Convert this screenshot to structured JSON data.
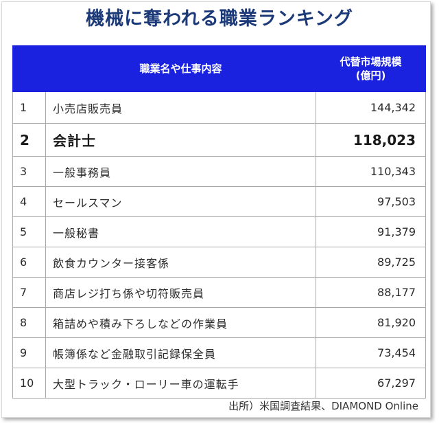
{
  "title": "機械に奪われる職業ランキング",
  "table": {
    "headers": {
      "rank": "",
      "job": "職業名や仕事内容",
      "market_line1": "代替市場規模",
      "market_line2": "(億円)"
    },
    "rows": [
      {
        "rank": "1",
        "job": "小売店販売員",
        "value": "144,342"
      },
      {
        "rank": "2",
        "job": "会計士",
        "value": "118,023"
      },
      {
        "rank": "3",
        "job": "一般事務員",
        "value": "110,343"
      },
      {
        "rank": "4",
        "job": "セールスマン",
        "value": "97,503"
      },
      {
        "rank": "5",
        "job": "一般秘書",
        "value": "91,379"
      },
      {
        "rank": "6",
        "job": "飲食カウンター接客係",
        "value": "89,725"
      },
      {
        "rank": "7",
        "job": "商店レジ打ち係や切符販売員",
        "value": "88,177"
      },
      {
        "rank": "8",
        "job": "箱詰めや積み下ろしなどの作業員",
        "value": "81,920"
      },
      {
        "rank": "9",
        "job": "帳簿係など金融取引記録保全員",
        "value": "73,454"
      },
      {
        "rank": "10",
        "job": "大型トラック・ローリー車の運転手",
        "value": "67,297"
      }
    ]
  },
  "source": "出所）米国調査結果、DIAMOND Online",
  "colors": {
    "title": "#1d3a78",
    "header_bg": "#1a22e0",
    "header_text": "#ffffff",
    "border": "#a8a8a8"
  }
}
